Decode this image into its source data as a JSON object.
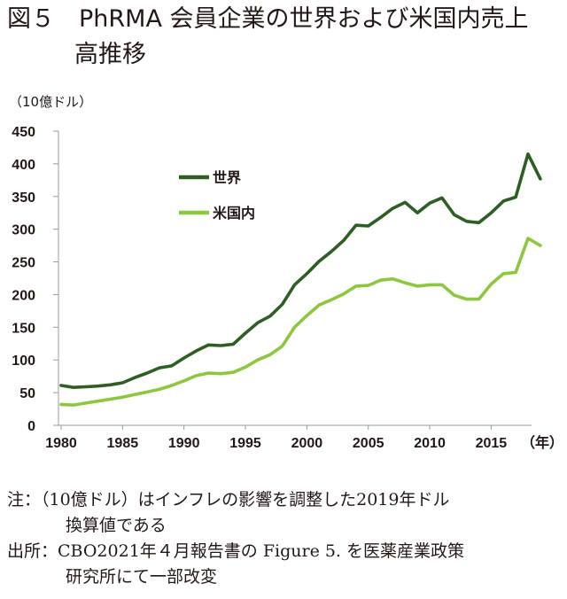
{
  "title_line1": "図５　PhRMA 会員企業の世界および米国内売上",
  "title_line2": "高推移",
  "notes": {
    "note_line1": "注：（10億ドル）はインフレの影響を調整した2019年ドル",
    "note_line2": "換算値である",
    "source_line1": "出所：CBO2021年４月報告書の Figure 5. を医薬産業政策",
    "source_line2": "研究所にて一部改変"
  },
  "colors": {
    "world": "#2e5e23",
    "us": "#8dc63f",
    "axis": "#999999"
  },
  "chart_data": {
    "type": "line",
    "ylabel": "（10億ドル）",
    "xlabel": "（年）",
    "ylim": [
      0,
      450
    ],
    "yticks": [
      0,
      50,
      100,
      150,
      200,
      250,
      300,
      350,
      400,
      450
    ],
    "xlim": [
      1980,
      2018
    ],
    "xticks": [
      1980,
      1985,
      1990,
      1995,
      2000,
      2005,
      2010,
      2015
    ],
    "legend_position": "upper-left",
    "x": [
      1980,
      1981,
      1982,
      1983,
      1984,
      1985,
      1986,
      1987,
      1988,
      1989,
      1990,
      1991,
      1992,
      1993,
      1994,
      1995,
      1996,
      1997,
      1998,
      1999,
      2000,
      2001,
      2002,
      2003,
      2004,
      2005,
      2006,
      2007,
      2008,
      2009,
      2010,
      2011,
      2012,
      2013,
      2014,
      2015,
      2016,
      2017,
      2018,
      2019
    ],
    "series": [
      {
        "name": "世界",
        "color": "#2e5e23",
        "values": [
          61,
          58,
          59,
          60,
          62,
          65,
          73,
          80,
          88,
          91,
          103,
          114,
          123,
          122,
          124,
          141,
          157,
          167,
          185,
          215,
          232,
          251,
          266,
          283,
          306,
          305,
          318,
          332,
          341,
          325,
          340,
          348,
          322,
          312,
          310,
          325,
          343,
          349,
          415,
          377
        ]
      },
      {
        "name": "米国内",
        "color": "#8dc63f",
        "values": [
          32,
          31,
          34,
          37,
          40,
          43,
          47,
          51,
          55,
          61,
          68,
          76,
          80,
          79,
          81,
          89,
          100,
          108,
          121,
          150,
          168,
          184,
          192,
          201,
          213,
          214,
          222,
          224,
          218,
          213,
          215,
          215,
          199,
          193,
          193,
          216,
          232,
          234,
          286,
          275
        ]
      }
    ]
  }
}
